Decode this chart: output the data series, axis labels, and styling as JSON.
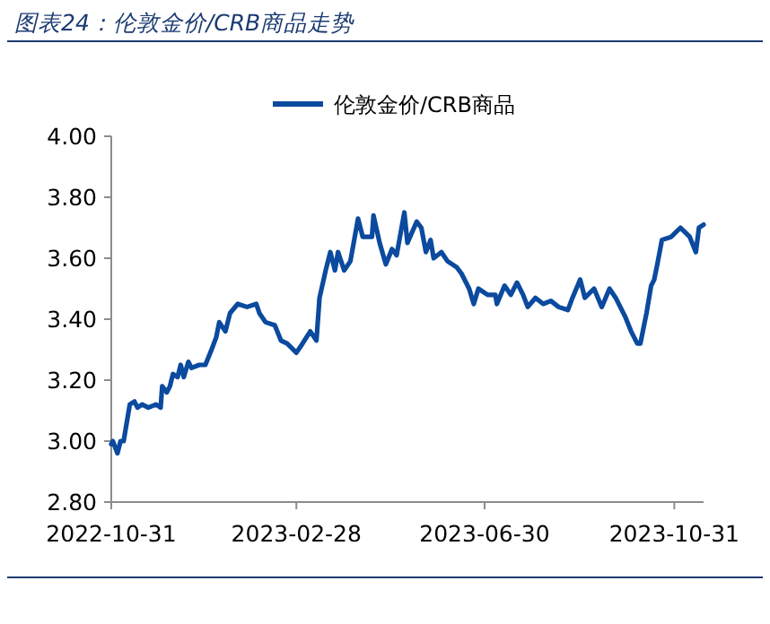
{
  "chart_data": {
    "type": "line",
    "title": "图表24：伦敦金价/CRB商品走势",
    "x": [
      "2022-10-31",
      "2022-11-01",
      "2022-11-04",
      "2022-11-06",
      "2022-11-08",
      "2022-11-12",
      "2022-11-15",
      "2022-11-17",
      "2022-11-20",
      "2022-11-24",
      "2022-11-29",
      "2022-12-02",
      "2022-12-03",
      "2022-12-06",
      "2022-12-08",
      "2022-12-10",
      "2022-12-13",
      "2022-12-15",
      "2022-12-17",
      "2022-12-20",
      "2022-12-22",
      "2022-12-27",
      "2022-12-31",
      "2023-01-04",
      "2023-01-07",
      "2023-01-09",
      "2023-01-13",
      "2023-01-16",
      "2023-01-21",
      "2023-01-27",
      "2023-02-02",
      "2023-02-04",
      "2023-02-08",
      "2023-02-14",
      "2023-02-18",
      "2023-02-22",
      "2023-02-28",
      "2023-03-04",
      "2023-03-09",
      "2023-03-13",
      "2023-03-15",
      "2023-03-19",
      "2023-03-22",
      "2023-03-25",
      "2023-03-27",
      "2023-03-31",
      "2023-04-04",
      "2023-04-09",
      "2023-04-12",
      "2023-04-18",
      "2023-04-19",
      "2023-04-23",
      "2023-04-27",
      "2023-05-01",
      "2023-05-04",
      "2023-05-09",
      "2023-05-11",
      "2023-05-17",
      "2023-05-20",
      "2023-05-23",
      "2023-05-26",
      "2023-05-28",
      "2023-06-02",
      "2023-06-06",
      "2023-06-12",
      "2023-06-15",
      "2023-06-20",
      "2023-06-23",
      "2023-06-26",
      "2023-07-02",
      "2023-07-07",
      "2023-07-08",
      "2023-07-13",
      "2023-07-17",
      "2023-07-21",
      "2023-07-25",
      "2023-07-28",
      "2023-08-02",
      "2023-08-07",
      "2023-08-12",
      "2023-08-17",
      "2023-08-23",
      "2023-08-26",
      "2023-08-31",
      "2023-09-03",
      "2023-09-09",
      "2023-09-14",
      "2023-09-19",
      "2023-09-23",
      "2023-09-29",
      "2023-10-03",
      "2023-10-07",
      "2023-10-09",
      "2023-10-13",
      "2023-10-16",
      "2023-10-18",
      "2023-10-20",
      "2023-10-23",
      "2023-10-29",
      "2023-11-04",
      "2023-11-06",
      "2023-11-10",
      "2023-11-14",
      "2023-11-16",
      "2023-11-19"
    ],
    "series": [
      {
        "name": "伦敦金价/CRB商品",
        "color": "#0b4a9e",
        "values": [
          2.99,
          3.0,
          2.96,
          3.0,
          3.0,
          3.12,
          3.13,
          3.11,
          3.12,
          3.11,
          3.12,
          3.11,
          3.18,
          3.16,
          3.18,
          3.22,
          3.21,
          3.25,
          3.21,
          3.26,
          3.24,
          3.25,
          3.25,
          3.3,
          3.34,
          3.39,
          3.36,
          3.42,
          3.45,
          3.44,
          3.45,
          3.42,
          3.39,
          3.38,
          3.33,
          3.32,
          3.29,
          3.32,
          3.36,
          3.33,
          3.47,
          3.56,
          3.62,
          3.56,
          3.62,
          3.56,
          3.59,
          3.73,
          3.67,
          3.67,
          3.74,
          3.65,
          3.58,
          3.63,
          3.61,
          3.75,
          3.65,
          3.72,
          3.7,
          3.62,
          3.66,
          3.6,
          3.62,
          3.59,
          3.57,
          3.55,
          3.5,
          3.45,
          3.5,
          3.48,
          3.48,
          3.45,
          3.51,
          3.48,
          3.52,
          3.48,
          3.44,
          3.47,
          3.45,
          3.46,
          3.44,
          3.43,
          3.47,
          3.53,
          3.47,
          3.5,
          3.44,
          3.5,
          3.47,
          3.41,
          3.36,
          3.32,
          3.32,
          3.42,
          3.51,
          3.53,
          3.58,
          3.66,
          3.67,
          3.7,
          3.69,
          3.67,
          3.62,
          3.7,
          3.71
        ]
      }
    ],
    "xlim": [
      "2022-10-31",
      "2023-11-19"
    ],
    "xticks": [
      "2022-10-31",
      "2023-02-28",
      "2023-06-30",
      "2023-10-31"
    ],
    "ylim": [
      2.8,
      4.0
    ],
    "yticks": [
      {
        "value": 2.8,
        "label": "2.80"
      },
      {
        "value": 3.0,
        "label": "3.00"
      },
      {
        "value": 3.2,
        "label": "3.20"
      },
      {
        "value": 3.4,
        "label": "3.40"
      },
      {
        "value": 3.6,
        "label": "3.60"
      },
      {
        "value": 3.8,
        "label": "3.80"
      },
      {
        "value": 4.0,
        "label": "4.00"
      }
    ],
    "legend": "top",
    "grid": false,
    "marker": "none",
    "line_style": "solid"
  }
}
